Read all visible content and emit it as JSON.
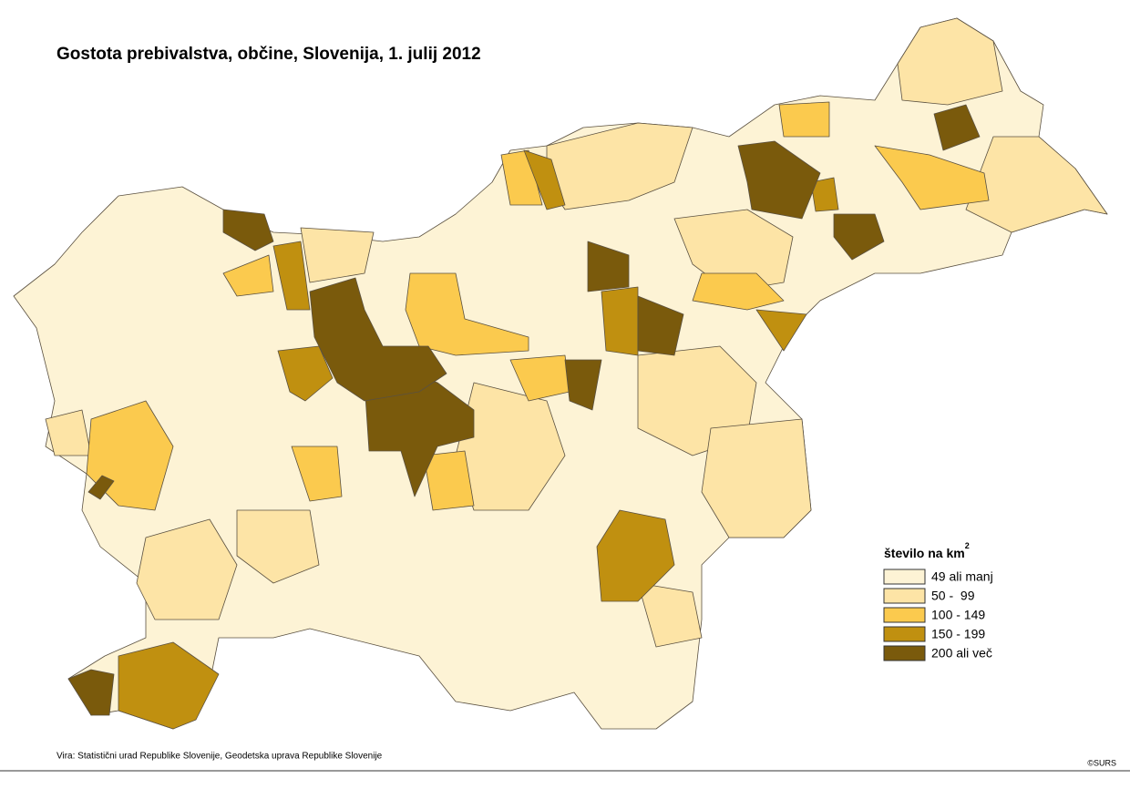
{
  "title": "Gostota prebivalstva, občine, Slovenija, 1. julij 2012",
  "legend": {
    "title": "število na km",
    "title_sup": "2",
    "items": [
      {
        "label": "49 ali manj",
        "color": "#fdf3d5"
      },
      {
        "label": "50 -  99",
        "color": "#fde4a6"
      },
      {
        "label": "100 - 149",
        "color": "#fbca4e"
      },
      {
        "label": "150 - 199",
        "color": "#c09010"
      },
      {
        "label": "200 ali več",
        "color": "#7a5a0c"
      }
    ]
  },
  "source": "Vira: Statistični urad Republike Slovenije, Geodetska uprava Republike Slovenije",
  "copyright": "©SURS"
}
